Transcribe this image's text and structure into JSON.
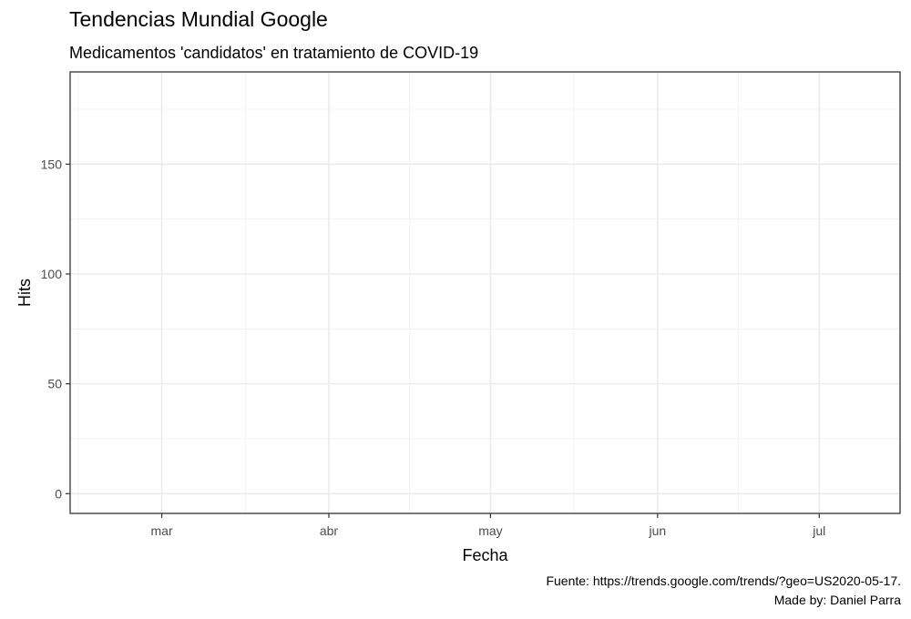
{
  "chart_data": {
    "type": "line",
    "title": "Tendencias Mundial Google",
    "subtitle": "Medicamentos 'candidatos' en tratamiento de COVID-19",
    "xlabel": "Fecha",
    "ylabel": "Hits",
    "caption_lines": [
      "Fuente: https://trends.google.com/trends/?geo=US2020-05-17.",
      "Made by: Daniel Parra"
    ],
    "x_ticks": [
      {
        "label": "mar",
        "date": "2020-03-01"
      },
      {
        "label": "abr",
        "date": "2020-04-01"
      },
      {
        "label": "may",
        "date": "2020-05-01"
      },
      {
        "label": "jun",
        "date": "2020-06-01"
      },
      {
        "label": "jul",
        "date": "2020-07-01"
      }
    ],
    "xlim": [
      "2020-02-13",
      "2020-07-16"
    ],
    "y_ticks": [
      0,
      50,
      100,
      150
    ],
    "ylim": [
      -9,
      192
    ],
    "grid": true,
    "series": []
  }
}
